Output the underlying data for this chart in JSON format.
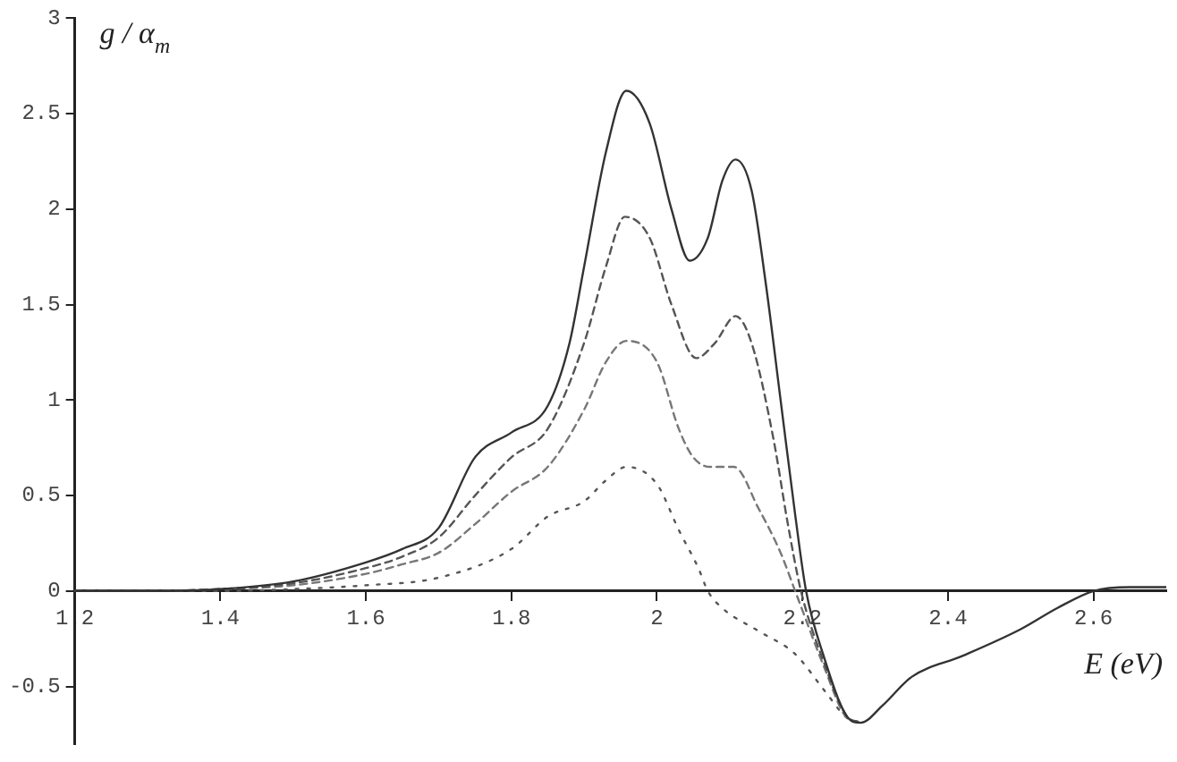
{
  "chart_data": {
    "type": "line",
    "xlabel": "E (eV)",
    "ylabel": "g / α$_{m}$",
    "xlim": [
      1.2,
      2.7
    ],
    "xticks": [
      1.2,
      1.4,
      1.6,
      1.8,
      2,
      2.2,
      2.4,
      2.6
    ],
    "ylim": [
      -0.8,
      3
    ],
    "yticks": [
      -0.5,
      0,
      0.5,
      1,
      1.5,
      2,
      2.5,
      3
    ],
    "grid": false,
    "legend": false,
    "series": [
      {
        "color": "#333333",
        "line_style": "solid",
        "x": [
          1.2,
          1.3,
          1.4,
          1.5,
          1.6,
          1.65,
          1.7,
          1.75,
          1.8,
          1.85,
          1.88,
          1.9,
          1.93,
          1.958,
          1.99,
          2.02,
          2.045,
          2.07,
          2.09,
          2.108,
          2.13,
          2.15,
          2.17,
          2.19,
          2.205,
          2.23,
          2.26,
          2.28,
          2.31,
          2.35,
          2.42,
          2.5,
          2.55,
          2.6,
          2.65,
          2.7
        ],
        "values": [
          0,
          0,
          0.01,
          0.05,
          0.15,
          0.22,
          0.33,
          0.7,
          0.83,
          0.97,
          1.3,
          1.7,
          2.3,
          2.62,
          2.45,
          2.0,
          1.73,
          1.85,
          2.15,
          2.26,
          2.1,
          1.6,
          1.0,
          0.4,
          0,
          -0.35,
          -0.65,
          -0.69,
          -0.6,
          -0.45,
          -0.34,
          -0.2,
          -0.09,
          0,
          0.02,
          0.02
        ]
      },
      {
        "color": "#555555",
        "line_style": "dashed",
        "x": [
          1.2,
          1.3,
          1.4,
          1.5,
          1.6,
          1.65,
          1.7,
          1.75,
          1.8,
          1.85,
          1.9,
          1.93,
          1.956,
          1.99,
          2.02,
          2.054,
          2.08,
          2.108,
          2.13,
          2.16,
          2.18,
          2.198,
          2.23,
          2.26,
          2.28
        ],
        "values": [
          0,
          0,
          0.01,
          0.04,
          0.12,
          0.18,
          0.28,
          0.5,
          0.7,
          0.85,
          1.3,
          1.7,
          1.96,
          1.85,
          1.5,
          1.22,
          1.3,
          1.44,
          1.3,
          0.8,
          0.35,
          0,
          -0.38,
          -0.65,
          -0.69
        ]
      },
      {
        "color": "#777777",
        "line_style": "dashed",
        "x": [
          1.2,
          1.3,
          1.4,
          1.5,
          1.6,
          1.65,
          1.7,
          1.75,
          1.8,
          1.85,
          1.9,
          1.93,
          1.958,
          2.0,
          2.03,
          2.05,
          2.074,
          2.106,
          2.14,
          2.17,
          2.19,
          2.23,
          2.26,
          2.28
        ],
        "values": [
          0,
          0,
          0.01,
          0.03,
          0.09,
          0.14,
          0.2,
          0.35,
          0.52,
          0.65,
          0.95,
          1.2,
          1.31,
          1.2,
          0.85,
          0.7,
          0.65,
          0.65,
          0.43,
          0.2,
          0,
          -0.4,
          -0.66,
          -0.69
        ]
      },
      {
        "color": "#555555",
        "line_style": "dotted",
        "x": [
          1.2,
          1.3,
          1.4,
          1.5,
          1.6,
          1.7,
          1.8,
          1.85,
          1.9,
          1.93,
          1.958,
          2.0,
          2.03,
          2.057,
          2.07,
          2.09,
          2.14,
          2.19,
          2.23,
          2.26,
          2.28
        ],
        "values": [
          0,
          0,
          0,
          0.01,
          0.03,
          0.07,
          0.22,
          0.39,
          0.47,
          0.58,
          0.65,
          0.56,
          0.32,
          0.12,
          0,
          -0.09,
          -0.21,
          -0.33,
          -0.52,
          -0.66,
          -0.69
        ]
      }
    ]
  }
}
